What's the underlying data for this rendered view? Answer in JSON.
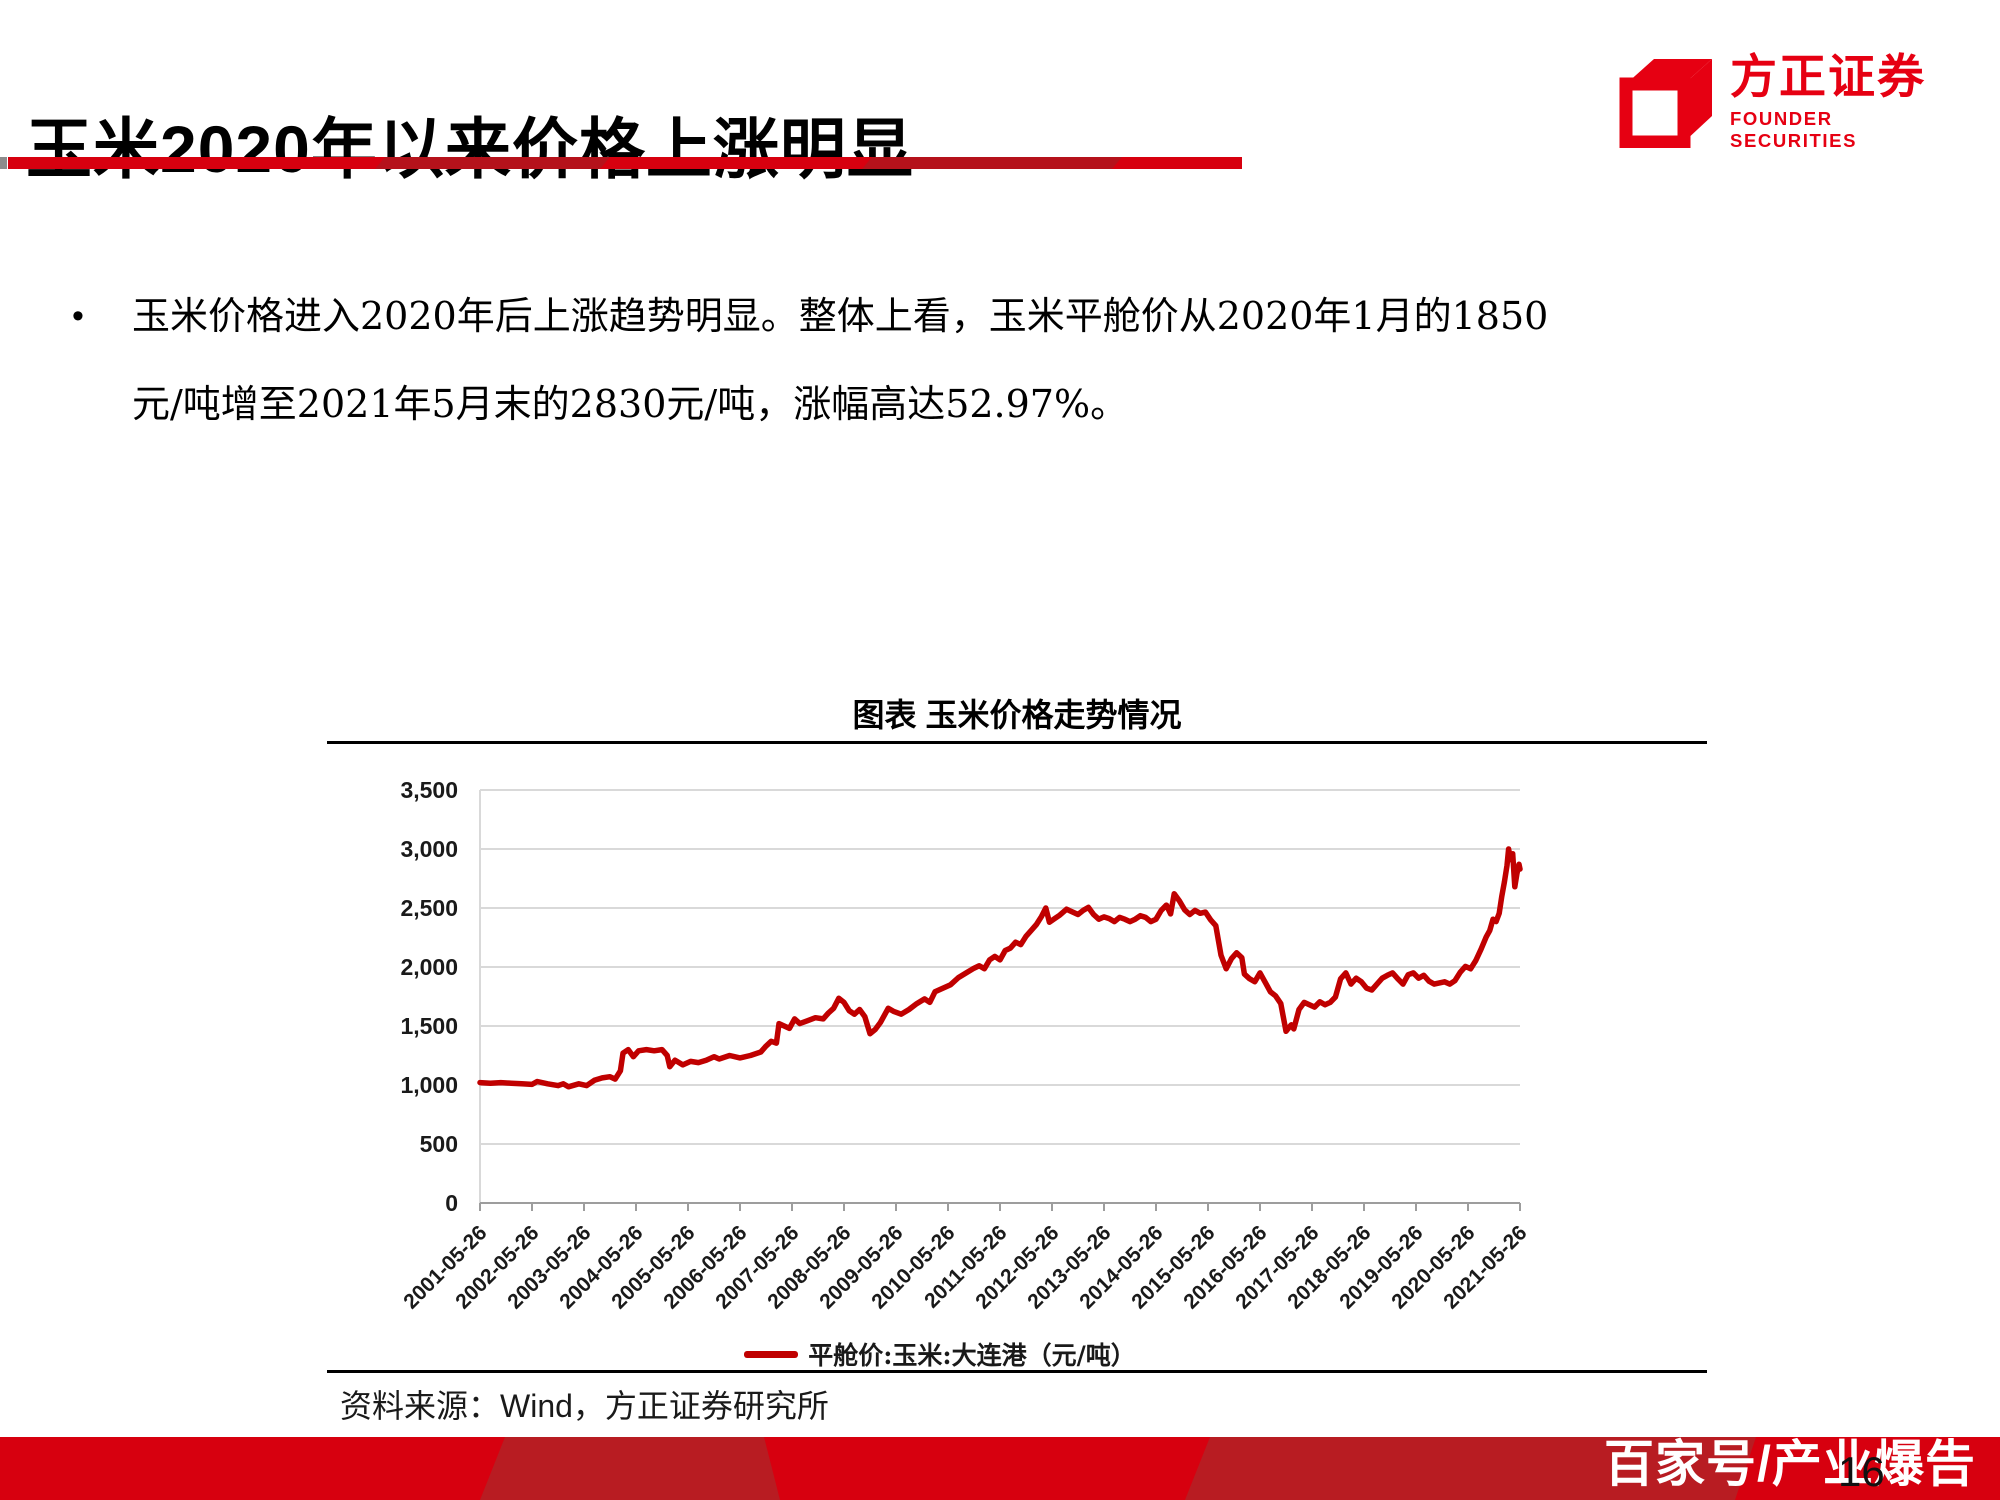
{
  "page": {
    "title": "玉米2020年以来价格上涨明显",
    "page_number": "16",
    "watermark": "百家号/产业爆告"
  },
  "logo": {
    "name_cn": "方正证券",
    "name_en": "FOUNDER SECURITIES"
  },
  "bullet": {
    "marker": "•",
    "lines": [
      "玉米价格进入2020年后上涨趋势明显。整体上看，玉米平舱价从2020年1月的1850",
      "元/吨增至2021年5月末的2830元/吨，涨幅高达52.97%。"
    ]
  },
  "chart": {
    "header": "图表 玉米价格走势情况",
    "source": "资料来源：Wind，方正证券研究所"
  },
  "colors": {
    "accent_red": "#d7000f",
    "dark_red": "#b5121b",
    "footer_dark_red": "#b81c22",
    "logo_red": "#e60012",
    "line_red": "#c00000",
    "grid_gray": "#d9d9d9",
    "axis_gray": "#9d9d9d"
  },
  "chart_data": {
    "type": "line",
    "title": "图表 玉米价格走势情况",
    "xlabel": "",
    "ylabel": "元/吨",
    "ylim": [
      0,
      3500
    ],
    "x_range": [
      2001.4,
      2021.4
    ],
    "grid": true,
    "legend_position": "bottom",
    "y_ticks": [
      "0",
      "500",
      "1,000",
      "1,500",
      "2,000",
      "2,500",
      "3,000",
      "3,500"
    ],
    "x_ticks": [
      "2001-05-26",
      "2002-05-26",
      "2003-05-26",
      "2004-05-26",
      "2005-05-26",
      "2006-05-26",
      "2007-05-26",
      "2008-05-26",
      "2009-05-26",
      "2010-05-26",
      "2011-05-26",
      "2012-05-26",
      "2013-05-26",
      "2014-05-26",
      "2015-05-26",
      "2016-05-26",
      "2017-05-26",
      "2018-05-26",
      "2019-05-26",
      "2020-05-26",
      "2021-05-26"
    ],
    "series": [
      {
        "name": "平舱价:玉米:大连港（元/吨）",
        "color": "#c00000",
        "points": [
          [
            2001.4,
            1020
          ],
          [
            2001.6,
            1015
          ],
          [
            2001.8,
            1020
          ],
          [
            2002.0,
            1015
          ],
          [
            2002.2,
            1010
          ],
          [
            2002.4,
            1005
          ],
          [
            2002.5,
            1030
          ],
          [
            2002.7,
            1010
          ],
          [
            2002.9,
            995
          ],
          [
            2003.0,
            1010
          ],
          [
            2003.1,
            985
          ],
          [
            2003.3,
            1010
          ],
          [
            2003.45,
            995
          ],
          [
            2003.6,
            1040
          ],
          [
            2003.75,
            1060
          ],
          [
            2003.9,
            1070
          ],
          [
            2004.0,
            1050
          ],
          [
            2004.1,
            1120
          ],
          [
            2004.15,
            1270
          ],
          [
            2004.25,
            1300
          ],
          [
            2004.35,
            1240
          ],
          [
            2004.45,
            1290
          ],
          [
            2004.6,
            1300
          ],
          [
            2004.75,
            1290
          ],
          [
            2004.9,
            1300
          ],
          [
            2005.0,
            1250
          ],
          [
            2005.05,
            1155
          ],
          [
            2005.15,
            1210
          ],
          [
            2005.3,
            1170
          ],
          [
            2005.45,
            1200
          ],
          [
            2005.6,
            1190
          ],
          [
            2005.75,
            1210
          ],
          [
            2005.9,
            1240
          ],
          [
            2006.0,
            1220
          ],
          [
            2006.2,
            1250
          ],
          [
            2006.4,
            1230
          ],
          [
            2006.6,
            1250
          ],
          [
            2006.8,
            1280
          ],
          [
            2006.9,
            1330
          ],
          [
            2007.0,
            1370
          ],
          [
            2007.1,
            1355
          ],
          [
            2007.15,
            1520
          ],
          [
            2007.25,
            1500
          ],
          [
            2007.35,
            1480
          ],
          [
            2007.45,
            1560
          ],
          [
            2007.55,
            1520
          ],
          [
            2007.7,
            1545
          ],
          [
            2007.85,
            1570
          ],
          [
            2008.0,
            1560
          ],
          [
            2008.1,
            1610
          ],
          [
            2008.2,
            1650
          ],
          [
            2008.3,
            1735
          ],
          [
            2008.4,
            1700
          ],
          [
            2008.5,
            1630
          ],
          [
            2008.6,
            1600
          ],
          [
            2008.7,
            1640
          ],
          [
            2008.8,
            1580
          ],
          [
            2008.9,
            1435
          ],
          [
            2009.0,
            1470
          ],
          [
            2009.1,
            1530
          ],
          [
            2009.25,
            1650
          ],
          [
            2009.35,
            1625
          ],
          [
            2009.5,
            1600
          ],
          [
            2009.65,
            1640
          ],
          [
            2009.8,
            1690
          ],
          [
            2009.95,
            1730
          ],
          [
            2010.05,
            1700
          ],
          [
            2010.15,
            1790
          ],
          [
            2010.3,
            1820
          ],
          [
            2010.45,
            1850
          ],
          [
            2010.6,
            1910
          ],
          [
            2010.75,
            1950
          ],
          [
            2010.9,
            1990
          ],
          [
            2011.0,
            2010
          ],
          [
            2011.1,
            1985
          ],
          [
            2011.2,
            2060
          ],
          [
            2011.3,
            2090
          ],
          [
            2011.4,
            2060
          ],
          [
            2011.5,
            2140
          ],
          [
            2011.6,
            2160
          ],
          [
            2011.7,
            2210
          ],
          [
            2011.8,
            2190
          ],
          [
            2011.9,
            2260
          ],
          [
            2012.0,
            2310
          ],
          [
            2012.1,
            2360
          ],
          [
            2012.2,
            2430
          ],
          [
            2012.28,
            2500
          ],
          [
            2012.35,
            2380
          ],
          [
            2012.45,
            2410
          ],
          [
            2012.55,
            2440
          ],
          [
            2012.68,
            2490
          ],
          [
            2012.8,
            2465
          ],
          [
            2012.9,
            2445
          ],
          [
            2013.0,
            2480
          ],
          [
            2013.1,
            2505
          ],
          [
            2013.2,
            2445
          ],
          [
            2013.3,
            2405
          ],
          [
            2013.4,
            2425
          ],
          [
            2013.5,
            2410
          ],
          [
            2013.6,
            2385
          ],
          [
            2013.7,
            2420
          ],
          [
            2013.8,
            2405
          ],
          [
            2013.9,
            2385
          ],
          [
            2014.0,
            2405
          ],
          [
            2014.1,
            2435
          ],
          [
            2014.2,
            2420
          ],
          [
            2014.3,
            2385
          ],
          [
            2014.4,
            2405
          ],
          [
            2014.5,
            2480
          ],
          [
            2014.6,
            2525
          ],
          [
            2014.68,
            2450
          ],
          [
            2014.75,
            2620
          ],
          [
            2014.85,
            2560
          ],
          [
            2014.95,
            2485
          ],
          [
            2015.05,
            2445
          ],
          [
            2015.15,
            2480
          ],
          [
            2015.25,
            2455
          ],
          [
            2015.35,
            2465
          ],
          [
            2015.45,
            2400
          ],
          [
            2015.55,
            2350
          ],
          [
            2015.65,
            2100
          ],
          [
            2015.75,
            1985
          ],
          [
            2015.85,
            2070
          ],
          [
            2015.95,
            2120
          ],
          [
            2016.05,
            2080
          ],
          [
            2016.1,
            1940
          ],
          [
            2016.2,
            1900
          ],
          [
            2016.3,
            1875
          ],
          [
            2016.4,
            1950
          ],
          [
            2016.5,
            1870
          ],
          [
            2016.6,
            1790
          ],
          [
            2016.7,
            1755
          ],
          [
            2016.8,
            1690
          ],
          [
            2016.9,
            1455
          ],
          [
            2017.0,
            1510
          ],
          [
            2017.05,
            1475
          ],
          [
            2017.15,
            1640
          ],
          [
            2017.25,
            1700
          ],
          [
            2017.35,
            1680
          ],
          [
            2017.45,
            1660
          ],
          [
            2017.55,
            1705
          ],
          [
            2017.65,
            1680
          ],
          [
            2017.75,
            1700
          ],
          [
            2017.85,
            1745
          ],
          [
            2017.95,
            1900
          ],
          [
            2018.05,
            1950
          ],
          [
            2018.15,
            1855
          ],
          [
            2018.25,
            1905
          ],
          [
            2018.35,
            1875
          ],
          [
            2018.45,
            1820
          ],
          [
            2018.55,
            1805
          ],
          [
            2018.65,
            1855
          ],
          [
            2018.75,
            1905
          ],
          [
            2018.85,
            1930
          ],
          [
            2018.95,
            1950
          ],
          [
            2019.05,
            1900
          ],
          [
            2019.15,
            1855
          ],
          [
            2019.25,
            1935
          ],
          [
            2019.35,
            1950
          ],
          [
            2019.45,
            1905
          ],
          [
            2019.55,
            1930
          ],
          [
            2019.65,
            1880
          ],
          [
            2019.75,
            1855
          ],
          [
            2019.85,
            1865
          ],
          [
            2019.95,
            1875
          ],
          [
            2020.05,
            1855
          ],
          [
            2020.15,
            1885
          ],
          [
            2020.25,
            1955
          ],
          [
            2020.35,
            2005
          ],
          [
            2020.45,
            1985
          ],
          [
            2020.55,
            2055
          ],
          [
            2020.65,
            2150
          ],
          [
            2020.75,
            2255
          ],
          [
            2020.82,
            2310
          ],
          [
            2020.88,
            2405
          ],
          [
            2020.94,
            2385
          ],
          [
            2021.0,
            2455
          ],
          [
            2021.05,
            2600
          ],
          [
            2021.1,
            2720
          ],
          [
            2021.15,
            2860
          ],
          [
            2021.18,
            3000
          ],
          [
            2021.22,
            2910
          ],
          [
            2021.26,
            2960
          ],
          [
            2021.3,
            2680
          ],
          [
            2021.34,
            2790
          ],
          [
            2021.38,
            2870
          ],
          [
            2021.4,
            2830
          ]
        ]
      }
    ]
  }
}
